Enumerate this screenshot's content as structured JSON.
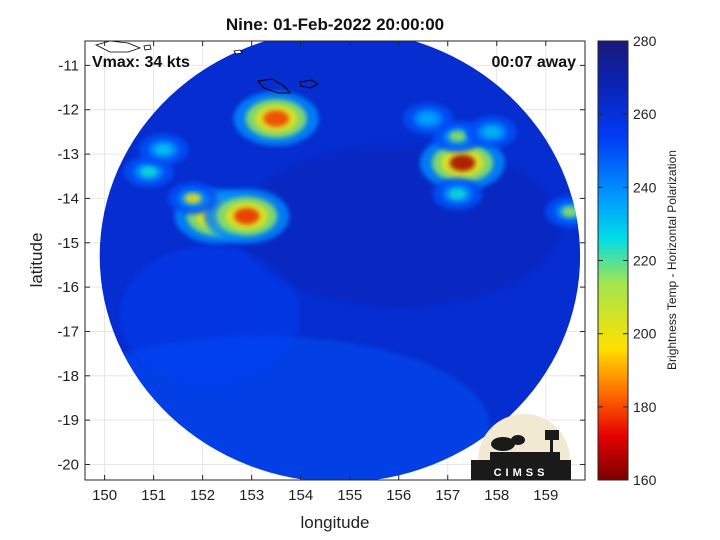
{
  "chart_data": {
    "type": "heatmap",
    "title": "Nine: 01-Feb-2022 20:00:00",
    "xlabel": "longitude",
    "ylabel": "latitude",
    "xlim": [
      149.6,
      159.8
    ],
    "ylim": [
      -20.35,
      -10.45
    ],
    "xticks": [
      150,
      151,
      152,
      153,
      154,
      155,
      156,
      157,
      158,
      159
    ],
    "yticks": [
      -11,
      -12,
      -13,
      -14,
      -15,
      -16,
      -17,
      -18,
      -19,
      -20
    ],
    "grid": true,
    "colorbar": {
      "label": "Brightness Temp - Horizontal Polarization",
      "min": 160,
      "max": 280,
      "ticks": [
        160,
        180,
        200,
        220,
        240,
        260,
        280
      ],
      "colormap": "parula-jet"
    },
    "swath": {
      "center_lon": 154.8,
      "center_lat": -15.3,
      "radius_lon": 4.9,
      "radius_lat": 5.1
    },
    "background_tb": 262,
    "features": [
      {
        "lon": 152.3,
        "lat": -14.4,
        "tb": 188
      },
      {
        "lon": 152.9,
        "lat": -14.4,
        "tb": 176
      },
      {
        "lon": 151.8,
        "lat": -14.0,
        "tb": 200
      },
      {
        "lon": 153.5,
        "lat": -12.2,
        "tb": 178
      },
      {
        "lon": 157.3,
        "lat": -13.2,
        "tb": 165
      },
      {
        "lon": 157.2,
        "lat": -12.6,
        "tb": 215
      },
      {
        "lon": 159.5,
        "lat": -14.3,
        "tb": 215
      },
      {
        "lon": 150.9,
        "lat": -13.4,
        "tb": 225
      },
      {
        "lon": 151.2,
        "lat": -12.9,
        "tb": 230
      },
      {
        "lon": 156.6,
        "lat": -12.2,
        "tb": 235
      },
      {
        "lon": 157.9,
        "lat": -12.5,
        "tb": 232
      },
      {
        "lon": 157.2,
        "lat": -13.9,
        "tb": 225
      }
    ],
    "annotations": {
      "vmax": "Vmax: 34 kts",
      "time_away": "00:07 away"
    }
  },
  "logo": {
    "text": "CIMSS"
  },
  "colors": {
    "background": "#ffffff",
    "grid": "#e6e6e6",
    "axes": "#262626"
  }
}
